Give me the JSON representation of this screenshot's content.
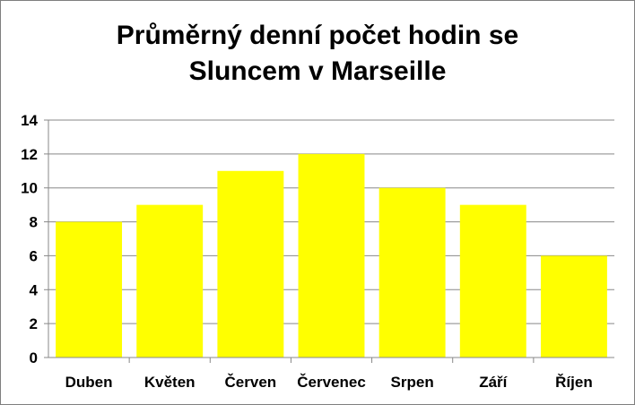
{
  "chart_data": {
    "type": "bar",
    "title_lines": [
      "Průměrný denní počet hodin se",
      "Sluncem v Marseille"
    ],
    "categories": [
      "Duben",
      "Květen",
      "Červen",
      "Červenec",
      "Srpen",
      "Září",
      "Říjen"
    ],
    "values": [
      8,
      9,
      11,
      12,
      10,
      9,
      6
    ],
    "ylim": [
      0,
      14
    ],
    "yticks": [
      0,
      2,
      4,
      6,
      8,
      10,
      12,
      14
    ],
    "grid": true,
    "legend": "none",
    "bar_color": "#ffff00",
    "grid_color": "#888888"
  }
}
